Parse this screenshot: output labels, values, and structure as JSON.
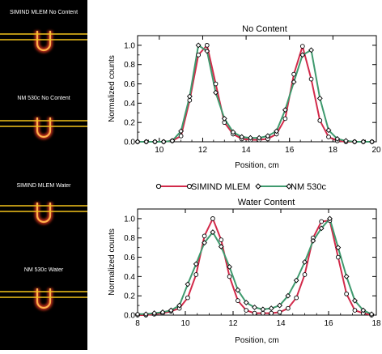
{
  "left_panel": {
    "labels": [
      "SIMIND MLEM No Content",
      "NM 530c No Content",
      "SIMIND MLEM Water",
      "NM 530c Water"
    ]
  },
  "legend": [
    {
      "name": "SIMIND MLEM",
      "color": "#d22a4a"
    },
    {
      "name": "NM 530c",
      "color": "#3f9a6e"
    }
  ],
  "chart_data": [
    {
      "type": "line",
      "title": "No Content",
      "xlabel": "Position, cm",
      "ylabel": "Normalized counts",
      "xlim": [
        9,
        20
      ],
      "ylim": [
        0,
        1.1
      ],
      "xticks": [
        10,
        12,
        14,
        16,
        18,
        20
      ],
      "yticks": [
        0.0,
        0.2,
        0.4,
        0.6,
        0.8,
        1.0
      ],
      "ytick_labels": [
        "0.0",
        "0.2",
        "0.4",
        "0.6",
        "0.8",
        "1.0"
      ],
      "series": [
        {
          "name": "SIMIND MLEM",
          "color": "#d22a4a",
          "marker": "circle",
          "x": [
            9.0,
            9.4,
            9.8,
            10.2,
            10.6,
            11.0,
            11.4,
            11.8,
            12.2,
            12.6,
            13.0,
            13.4,
            13.8,
            14.2,
            14.6,
            15.0,
            15.4,
            15.8,
            16.2,
            16.6,
            17.0,
            17.4,
            17.8,
            18.2,
            18.6,
            19.0,
            19.4,
            19.8
          ],
          "y": [
            0.0,
            0.0,
            0.0,
            0.0,
            0.01,
            0.06,
            0.43,
            0.9,
            1.0,
            0.6,
            0.2,
            0.08,
            0.03,
            0.02,
            0.02,
            0.03,
            0.08,
            0.24,
            0.7,
            0.99,
            0.65,
            0.22,
            0.05,
            0.01,
            0.0,
            0.0,
            0.0,
            0.0
          ]
        },
        {
          "name": "NM 530c",
          "color": "#3f9a6e",
          "marker": "diamond",
          "x": [
            9.0,
            9.4,
            9.8,
            10.2,
            10.6,
            11.0,
            11.4,
            11.8,
            12.2,
            12.6,
            13.0,
            13.4,
            13.8,
            14.2,
            14.6,
            15.0,
            15.4,
            15.8,
            16.2,
            16.6,
            17.0,
            17.4,
            17.8,
            18.2,
            18.6,
            19.0,
            19.4,
            19.8
          ],
          "y": [
            0.0,
            0.0,
            0.0,
            0.0,
            0.01,
            0.11,
            0.47,
            1.0,
            0.94,
            0.51,
            0.24,
            0.1,
            0.05,
            0.04,
            0.04,
            0.06,
            0.11,
            0.33,
            0.62,
            0.9,
            0.95,
            0.45,
            0.12,
            0.03,
            0.01,
            0.0,
            0.0,
            0.0
          ]
        }
      ]
    },
    {
      "type": "line",
      "title": "Water Content",
      "xlabel": "Position, cm",
      "ylabel": "Normalized counts",
      "xlim": [
        8,
        18
      ],
      "ylim": [
        0,
        1.1
      ],
      "xticks": [
        8,
        10,
        12,
        14,
        16,
        18
      ],
      "yticks": [
        0.0,
        0.2,
        0.4,
        0.6,
        0.8,
        1.0
      ],
      "ytick_labels": [
        "0.0",
        "0.2",
        "0.4",
        "0.6",
        "0.8",
        "1.0"
      ],
      "series": [
        {
          "name": "SIMIND MLEM",
          "color": "#d22a4a",
          "marker": "circle",
          "x": [
            8.0,
            8.35,
            8.7,
            9.05,
            9.4,
            9.75,
            10.1,
            10.45,
            10.8,
            11.15,
            11.5,
            11.85,
            12.2,
            12.55,
            12.9,
            13.25,
            13.6,
            13.95,
            14.3,
            14.65,
            15.0,
            15.35,
            15.7,
            16.05,
            16.4,
            16.75,
            17.1,
            17.45,
            17.8
          ],
          "y": [
            0.0,
            0.0,
            0.01,
            0.02,
            0.04,
            0.07,
            0.18,
            0.42,
            0.82,
            1.0,
            0.78,
            0.4,
            0.15,
            0.05,
            0.02,
            0.02,
            0.02,
            0.03,
            0.07,
            0.18,
            0.42,
            0.8,
            0.97,
            0.98,
            0.6,
            0.22,
            0.05,
            0.02,
            0.0
          ]
        },
        {
          "name": "NM 530c",
          "color": "#3f9a6e",
          "marker": "diamond",
          "x": [
            8.0,
            8.35,
            8.7,
            9.05,
            9.4,
            9.75,
            10.1,
            10.45,
            10.8,
            11.15,
            11.5,
            11.85,
            12.2,
            12.55,
            12.9,
            13.25,
            13.6,
            13.95,
            14.3,
            14.65,
            15.0,
            15.35,
            15.7,
            16.05,
            16.4,
            16.75,
            17.1,
            17.45,
            17.8
          ],
          "y": [
            0.01,
            0.01,
            0.02,
            0.03,
            0.05,
            0.1,
            0.32,
            0.53,
            0.75,
            0.86,
            0.71,
            0.5,
            0.26,
            0.13,
            0.08,
            0.06,
            0.07,
            0.1,
            0.2,
            0.36,
            0.55,
            0.77,
            0.9,
            1.0,
            0.7,
            0.4,
            0.15,
            0.05,
            0.01
          ]
        }
      ]
    }
  ]
}
